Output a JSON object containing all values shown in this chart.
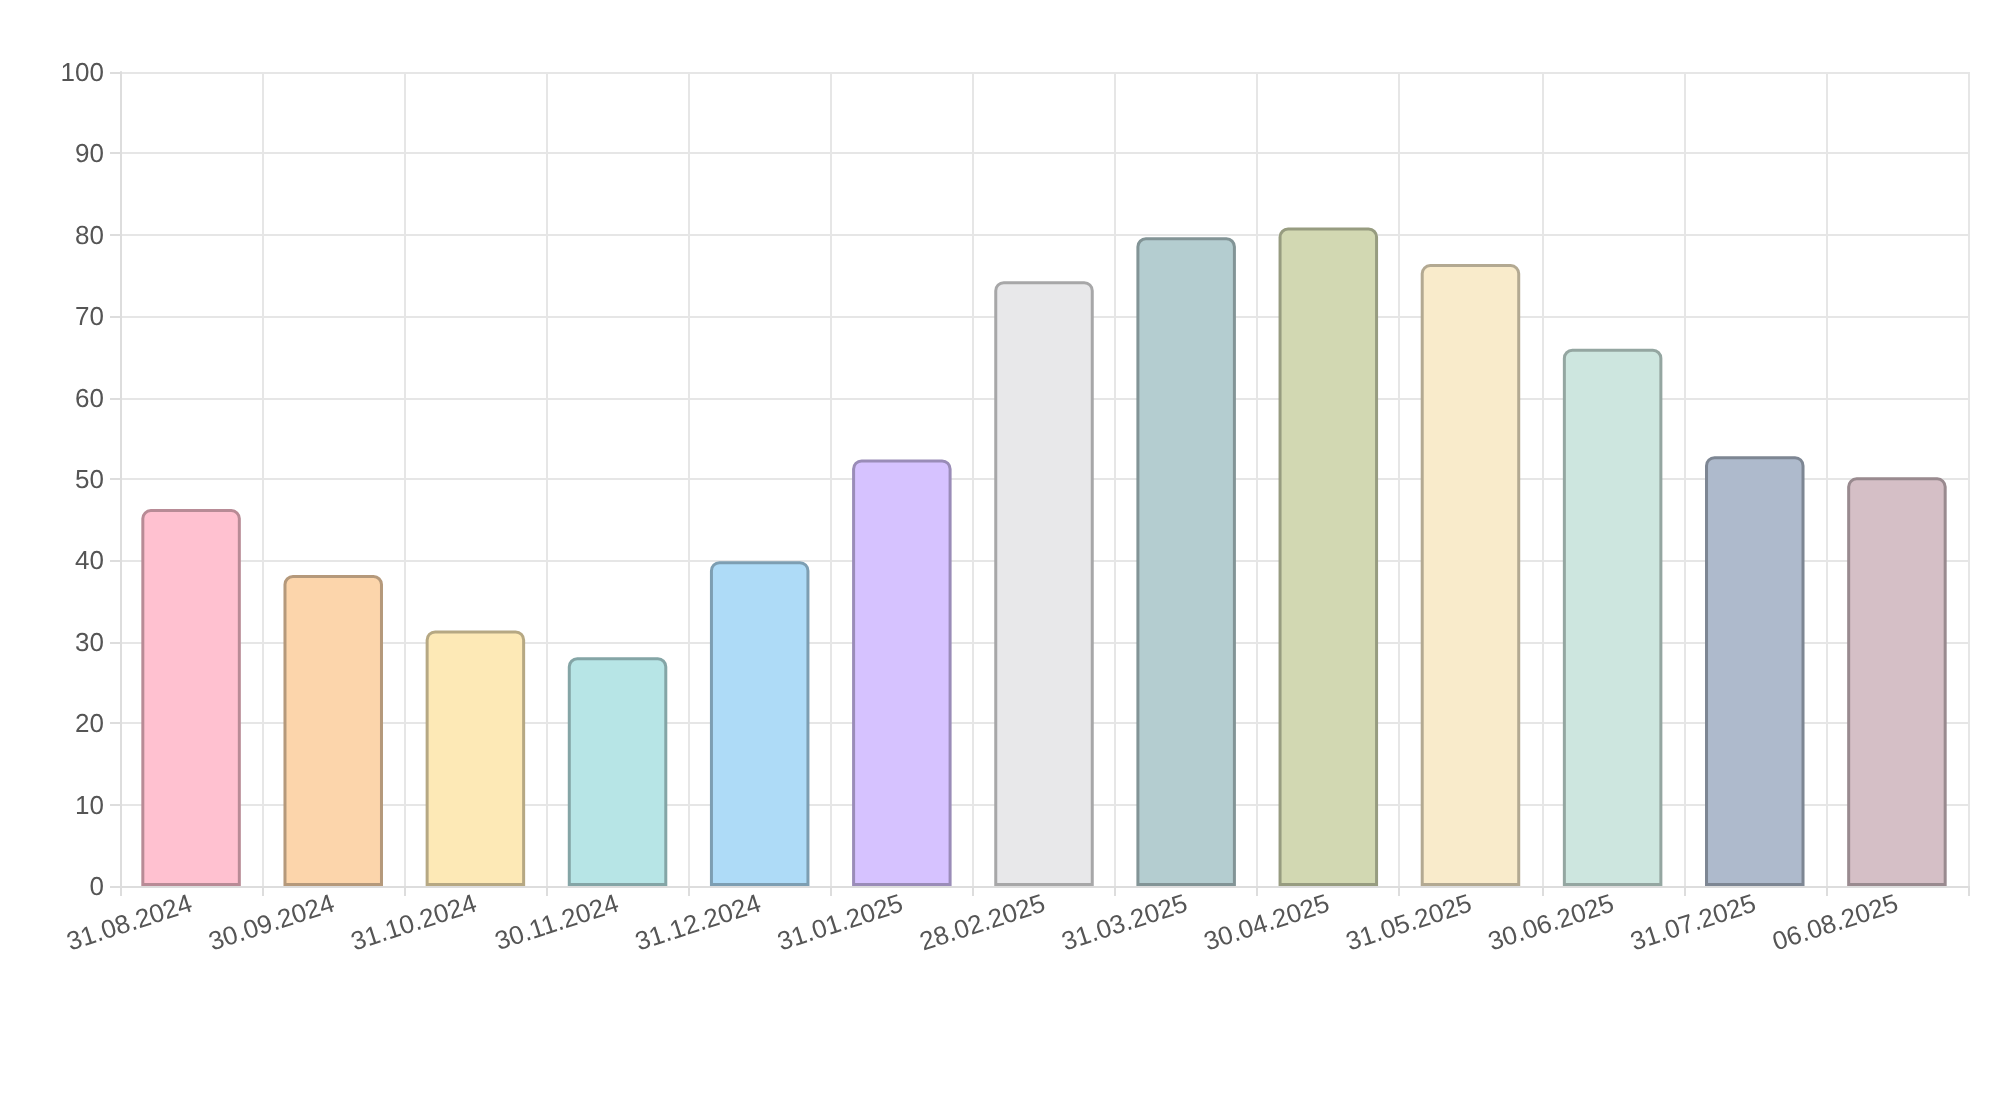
{
  "chart_data": {
    "type": "bar",
    "categories": [
      "31.08.2024",
      "30.09.2024",
      "31.10.2024",
      "30.11.2024",
      "31.12.2024",
      "31.01.2025",
      "28.02.2025",
      "31.03.2025",
      "30.04.2025",
      "31.05.2025",
      "30.06.2025",
      "31.07.2025",
      "06.08.2025"
    ],
    "values": [
      46.3,
      38.2,
      31.4,
      28.1,
      39.9,
      52.4,
      74.3,
      79.7,
      80.9,
      76.4,
      66,
      52.8,
      50.2
    ],
    "colors": [
      "#ffc1d0",
      "#fcd5ab",
      "#fde9b6",
      "#b7e5e6",
      "#aedbf7",
      "#d6c2ff",
      "#e8e8ea",
      "#b4cdd0",
      "#d2d8b2",
      "#f9ebcb",
      "#cde6df",
      "#aebacc",
      "#d5bfc6"
    ],
    "ylim": [
      0,
      100
    ],
    "yticks": [
      0,
      10,
      20,
      30,
      40,
      50,
      60,
      70,
      80,
      90,
      100
    ],
    "grid": true
  }
}
